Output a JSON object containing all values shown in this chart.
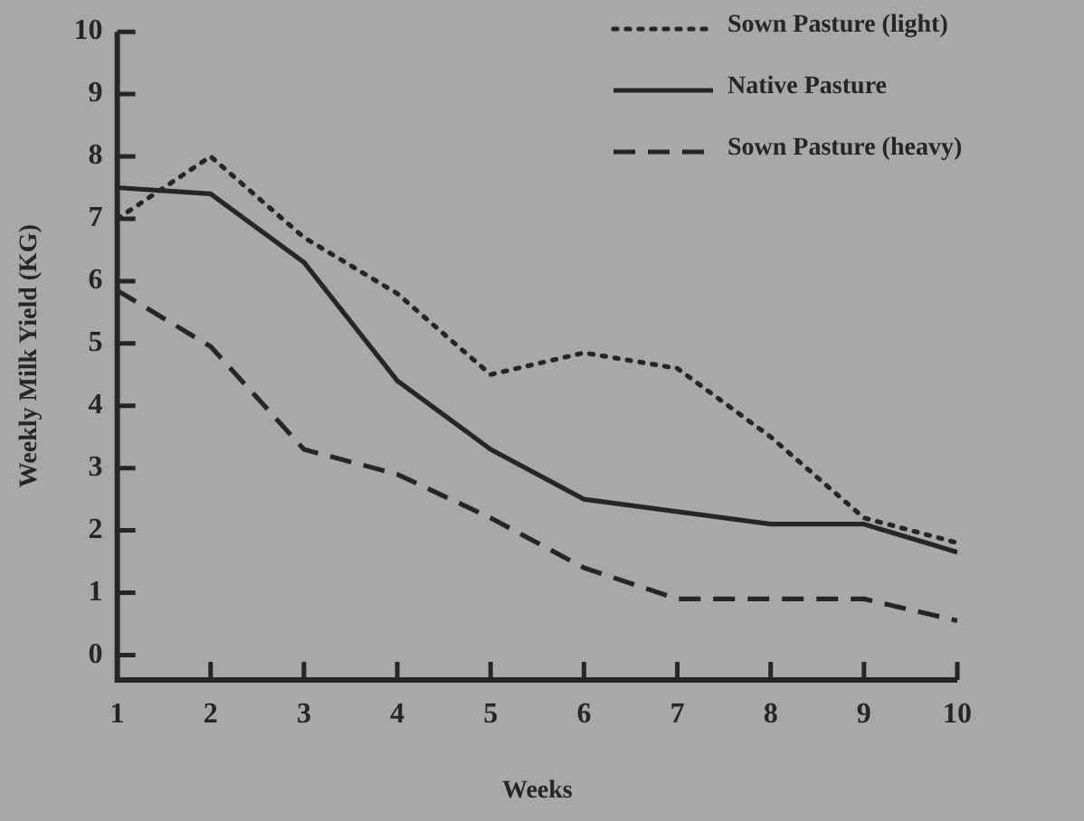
{
  "chart_data": {
    "type": "line",
    "xlabel": "Weeks",
    "ylabel": "Weekly Milk Yield (KG)",
    "x": [
      1,
      2,
      3,
      4,
      5,
      6,
      7,
      8,
      9,
      10
    ],
    "series": [
      {
        "name": "Sown Pasture (light)",
        "color": "#262626",
        "line_style": "dotted",
        "values": [
          7.0,
          8.0,
          6.7,
          5.8,
          4.5,
          4.85,
          4.6,
          3.5,
          2.2,
          1.8
        ]
      },
      {
        "name": "Native Pasture",
        "color": "#262626",
        "line_style": "solid",
        "values": [
          7.5,
          7.4,
          6.3,
          4.4,
          3.3,
          2.5,
          2.3,
          2.1,
          2.1,
          1.65
        ]
      },
      {
        "name": "Sown Pasture (heavy)",
        "color": "#262626",
        "line_style": "dashed",
        "values": [
          5.85,
          4.95,
          3.3,
          2.9,
          2.2,
          1.4,
          0.9,
          0.9,
          0.9,
          0.55
        ]
      }
    ],
    "xlim": [
      1,
      10
    ],
    "xticks": [
      1,
      2,
      3,
      4,
      5,
      6,
      7,
      8,
      9,
      10
    ],
    "ylim": [
      -0.4,
      10
    ],
    "yticks": [
      0,
      1,
      2,
      3,
      4,
      5,
      6,
      7,
      8,
      9,
      10
    ],
    "grid": false,
    "legend": "top right",
    "marker": "none"
  }
}
